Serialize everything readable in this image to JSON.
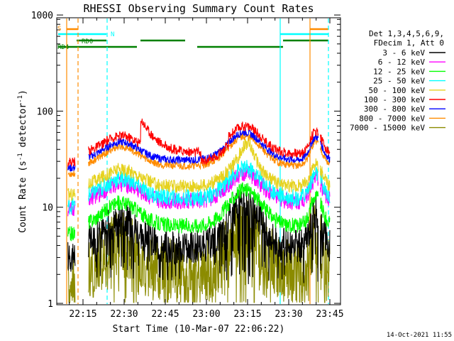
{
  "chart_data": {
    "type": "line",
    "title": "RHESSI Observing Summary Count Rates",
    "xlabel": "Start Time (10-Mar-07 22:06:22)",
    "ylabel": "Count Rate (s-1 detector-1)",
    "ylabel_parts": {
      "base": "Count Rate (s",
      "sup1": "-1",
      "mid": " detector",
      "sup2": "-1",
      "end": ")"
    },
    "yscale": "log",
    "ylim": [
      1,
      1000
    ],
    "xlim_minutes": [
      22.1,
      23.8
    ],
    "x_tick_labels": [
      "22:15",
      "22:30",
      "22:45",
      "23:00",
      "23:15",
      "23:30",
      "23:45"
    ],
    "y_tick_labels": [
      "1",
      "10",
      "100",
      "1000"
    ],
    "legend_header": [
      "Det 1,3,4,5,6,9,",
      "FDecim 1, Att 0"
    ],
    "footer_date": "14-Oct-2021 11:55",
    "series": [
      {
        "name": "3 - 6 keV",
        "color": "#000000"
      },
      {
        "name": "6 - 12 keV",
        "color": "#ff00ff"
      },
      {
        "name": "12 - 25 keV",
        "color": "#00ff00"
      },
      {
        "name": "25 - 50 keV",
        "color": "#00ffff"
      },
      {
        "name": "50 - 100 keV",
        "color": "#e6d21e"
      },
      {
        "name": "100 - 300 keV",
        "color": "#ff0000"
      },
      {
        "name": "300 - 800 keV",
        "color": "#0000ff"
      },
      {
        "name": "800 - 7000 keV",
        "color": "#ff8c00"
      },
      {
        "name": "7000 - 15000 keV",
        "color": "#8b8b00"
      }
    ],
    "flags": [
      {
        "label": "S",
        "color": "#ff8c00"
      },
      {
        "label": "N",
        "color": "#00ffff"
      },
      {
        "label": "RD0",
        "color": "#008000"
      },
      {
        "label": "RD4",
        "color": "#008000"
      }
    ]
  }
}
